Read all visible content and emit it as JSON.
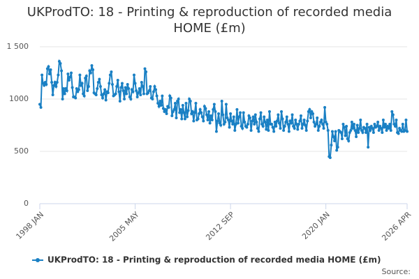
{
  "chart_data": {
    "type": "line",
    "title": "UKProdTO: 18 - Printing & reproduction of recorded media HOME (£m)",
    "source": "Source:",
    "categories": [
      "1998 JAN",
      null,
      null,
      null,
      null,
      null,
      null,
      null,
      null,
      null,
      null,
      null,
      null,
      null,
      null,
      null,
      null,
      null,
      null,
      null,
      null,
      null,
      null,
      null,
      null,
      null,
      null,
      null,
      null,
      null,
      null,
      null,
      null,
      null,
      null,
      null,
      null,
      null,
      null,
      null,
      null,
      null,
      null,
      null,
      null,
      null,
      null,
      null,
      null,
      null,
      null,
      null,
      null,
      null,
      null,
      null,
      null,
      null,
      null,
      null,
      null,
      null,
      null,
      null,
      null,
      null,
      null,
      null,
      null,
      null,
      null,
      null,
      null,
      null,
      null,
      null,
      null,
      null,
      null,
      null,
      null,
      null,
      null,
      null,
      null,
      null,
      null,
      null,
      "2005 MAY",
      null,
      null,
      null,
      null,
      null,
      null,
      null,
      null,
      null,
      null,
      null,
      null,
      null,
      null,
      null,
      null,
      null,
      null,
      null,
      null,
      null,
      null,
      null,
      null,
      null,
      null,
      null,
      null,
      null,
      null,
      null,
      null,
      null,
      null,
      null,
      null,
      null,
      null,
      null,
      null,
      null,
      null,
      null,
      null,
      null,
      null,
      null,
      null,
      null,
      null,
      null,
      null,
      null,
      null,
      null,
      null,
      null,
      null,
      null,
      null,
      null,
      null,
      null,
      null,
      null,
      null,
      null,
      null,
      null,
      null,
      null,
      null,
      null,
      null,
      null,
      null,
      null,
      null,
      null,
      null,
      null,
      null,
      null,
      null,
      null,
      null,
      null,
      "2012 SEP",
      null,
      null,
      null,
      null,
      null,
      null,
      null,
      null,
      null,
      null,
      null,
      null,
      null,
      null,
      null,
      null,
      null,
      null,
      null,
      null,
      null,
      null,
      null,
      null,
      null,
      null,
      null,
      null,
      null,
      null,
      null,
      null,
      null,
      null,
      null,
      null,
      null,
      null,
      null,
      null,
      null,
      null,
      null,
      null,
      null,
      null,
      null,
      null,
      null,
      null,
      null,
      null,
      null,
      null,
      null,
      null,
      null,
      null,
      null,
      null,
      null,
      null,
      null,
      null,
      null,
      null,
      null,
      null,
      null,
      null,
      null,
      null,
      null,
      null,
      null,
      null,
      null,
      null,
      null,
      null,
      null,
      null,
      null,
      null,
      null,
      null,
      null,
      "2020 JAN",
      null,
      null,
      null,
      null,
      null,
      null,
      null,
      null,
      null,
      null,
      null,
      null,
      null,
      null,
      null,
      null,
      null,
      null,
      null,
      null,
      null,
      null,
      null,
      null,
      null,
      null,
      null,
      null,
      null,
      null,
      null,
      null,
      null,
      null,
      null,
      null,
      null,
      null,
      null,
      null,
      null,
      null,
      null,
      null,
      null,
      null,
      null,
      null,
      null,
      null,
      null,
      null,
      null,
      null,
      null,
      null,
      null,
      null,
      null,
      null,
      null,
      null,
      null,
      null,
      null,
      null,
      null,
      null,
      null,
      null,
      null,
      null,
      null,
      null,
      "2026 APR"
    ],
    "series": [
      {
        "name": "UKProdTO: 18 - Printing & reproduction of recorded media HOME (£m)",
        "color": "#1a80c4",
        "values": [
          950,
          920,
          1230,
          1150,
          1130,
          1160,
          1140,
          1290,
          1310,
          1240,
          1280,
          1160,
          1040,
          1130,
          1160,
          1120,
          1160,
          1230,
          1360,
          1340,
          1270,
          1000,
          1100,
          1050,
          1100,
          1080,
          1240,
          1180,
          1210,
          1250,
          1110,
          1020,
          1020,
          1010,
          1100,
          1070,
          1090,
          1230,
          1130,
          1150,
          1050,
          1030,
          1200,
          1220,
          1080,
          1120,
          1270,
          1250,
          1320,
          1280,
          1060,
          1050,
          1040,
          1100,
          1160,
          1190,
          1120,
          1040,
          1010,
          1050,
          1090,
          990,
          1070,
          1060,
          1150,
          1230,
          1260,
          1140,
          1030,
          1040,
          1050,
          1120,
          1180,
          1070,
          980,
          1110,
          1150,
          1080,
          1000,
          1110,
          1050,
          1140,
          1100,
          1020,
          1000,
          1090,
          1070,
          1230,
          1150,
          1080,
          1020,
          1060,
          1100,
          1040,
          1160,
          1120,
          1050,
          1290,
          1260,
          1050,
          1060,
          1080,
          1120,
          1010,
          1000,
          1070,
          1120,
          1090,
          1030,
          960,
          930,
          980,
          940,
          1030,
          910,
          880,
          900,
          860,
          930,
          920,
          1030,
          1010,
          840,
          880,
          900,
          960,
          820,
          980,
          1000,
          870,
          900,
          810,
          940,
          870,
          810,
          960,
          830,
          890,
          1000,
          980,
          860,
          880,
          790,
          870,
          960,
          800,
          810,
          860,
          900,
          870,
          830,
          790,
          930,
          910,
          850,
          800,
          880,
          770,
          840,
          800,
          900,
          950,
          880,
          690,
          790,
          860,
          770,
          750,
          980,
          850,
          760,
          780,
          950,
          820,
          800,
          730,
          860,
          790,
          760,
          830,
          700,
          760,
          900,
          770,
          830,
          870,
          740,
          720,
          870,
          780,
          740,
          730,
          760,
          840,
          820,
          700,
          790,
          830,
          760,
          850,
          780,
          720,
          690,
          810,
          870,
          760,
          740,
          830,
          780,
          710,
          800,
          700,
          880,
          760,
          760,
          730,
          690,
          780,
          740,
          790,
          850,
          770,
          720,
          880,
          810,
          700,
          740,
          780,
          830,
          760,
          690,
          790,
          770,
          850,
          740,
          720,
          800,
          760,
          710,
          760,
          790,
          840,
          720,
          760,
          800,
          750,
          700,
          790,
          880,
          900,
          820,
          880,
          860,
          780,
          740,
          760,
          820,
          700,
          740,
          780,
          800,
          760,
          720,
          920,
          780,
          760,
          700,
          450,
          440,
          560,
          690,
          640,
          600,
          690,
          510,
          540,
          700,
          690,
          680,
          620,
          760,
          730,
          650,
          740,
          620,
          600,
          680,
          700,
          780,
          720,
          760,
          700,
          640,
          750,
          680,
          720,
          800,
          700,
          680,
          730,
          720,
          680,
          760,
          540,
          730,
          700,
          740,
          720,
          680,
          760,
          730,
          740,
          780,
          700,
          740,
          720,
          680,
          800,
          730,
          760,
          700,
          740,
          720,
          760,
          700,
          880,
          850,
          760,
          740,
          800,
          680,
          670,
          720,
          700,
          690,
          760,
          690,
          700,
          800,
          690
        ]
      }
    ],
    "ylim": [
      0,
      1500
    ],
    "yticks": [
      0,
      500,
      1000,
      {
        "value": 1500,
        "label": "1 500"
      }
    ],
    "grid": true
  }
}
